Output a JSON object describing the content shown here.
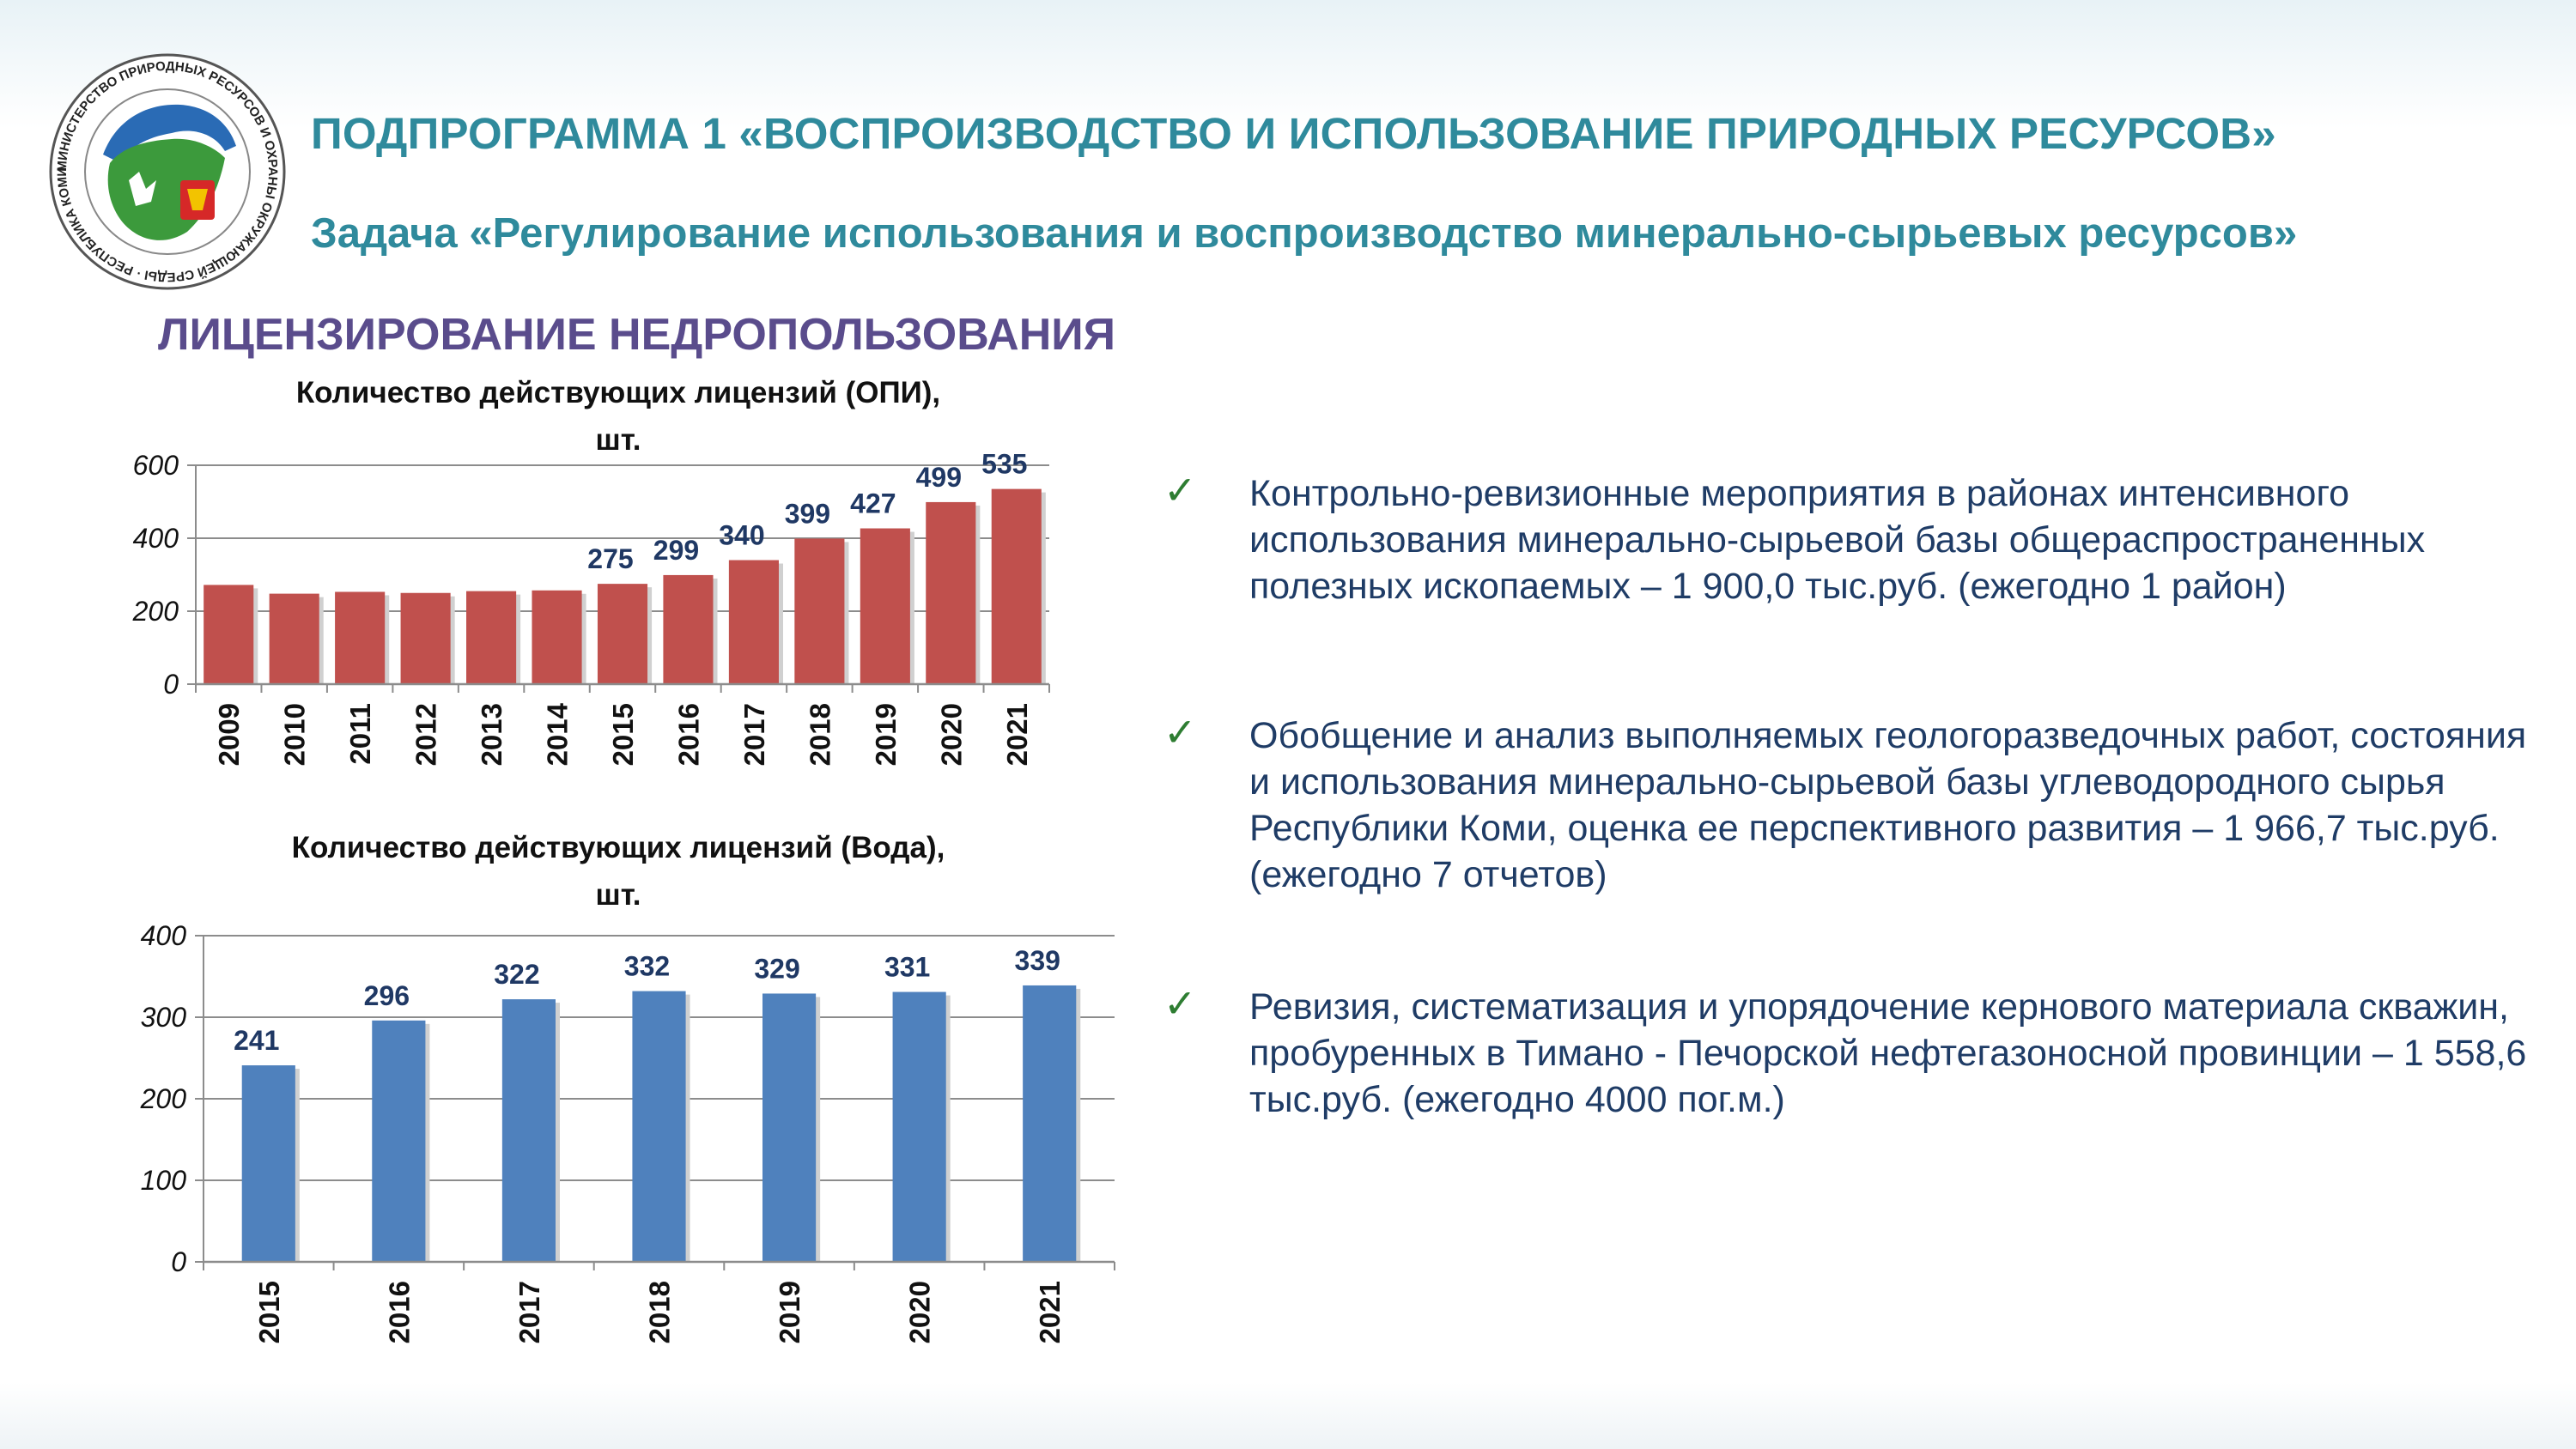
{
  "header": {
    "title": "ПОДПРОГРАММА 1 «ВОСПРОИЗВОДСТВО И ИСПОЛЬЗОВАНИЕ ПРИРОДНЫХ РЕСУРСОВ»",
    "subtitle": "Задача «Регулирование использования и воспроизводство минерально-сырьевых ресурсов»"
  },
  "logo": {
    "ring_text": "МИНИСТЕРСТВО ПРИРОДНЫХ РЕСУРСОВ И ОХРАНЫ ОКРУЖАЮЩЕЙ СРЕДЫ · РЕСПУБЛИКА КОМИ ·",
    "icon": "komi-map-emblem"
  },
  "section_title": "ЛИЦЕНЗИРОВАНИЕ НЕДРОПОЛЬЗОВАНИЯ",
  "chart_data": [
    {
      "type": "bar",
      "title_line1": "Количество действующих лицензий (ОПИ),",
      "title_line2": "шт.",
      "categories": [
        "2009",
        "2010",
        "2011",
        "2012",
        "2013",
        "2014",
        "2015",
        "2016",
        "2017",
        "2018",
        "2019",
        "2020",
        "2021"
      ],
      "values": [
        272,
        248,
        253,
        250,
        255,
        257,
        275,
        299,
        340,
        399,
        427,
        499,
        535
      ],
      "data_labels": [
        "",
        "",
        "",
        "",
        "",
        "",
        "275",
        "299",
        "340",
        "399",
        "427",
        "499",
        "535"
      ],
      "yticks": [
        "0",
        "200",
        "400",
        "600"
      ],
      "ylim": [
        0,
        600
      ],
      "grid": true,
      "color": "#c0504d"
    },
    {
      "type": "bar",
      "title_line1": "Количество действующих лицензий (Вода),",
      "title_line2": "шт.",
      "categories": [
        "2015",
        "2016",
        "2017",
        "2018",
        "2019",
        "2020",
        "2021"
      ],
      "values": [
        241,
        296,
        322,
        332,
        329,
        331,
        339
      ],
      "data_labels": [
        "241",
        "296",
        "322",
        "332",
        "329",
        "331",
        "339"
      ],
      "yticks": [
        "0",
        "100",
        "200",
        "300",
        "400"
      ],
      "ylim": [
        0,
        400
      ],
      "grid": true,
      "color": "#4f81bd"
    }
  ],
  "bullets": [
    "Контрольно-ревизионные мероприятия в районах интенсивного использования минерально-сырьевой базы общераспространенных полезных ископаемых – 1 900,0 тыс.руб. (ежегодно 1 район)",
    "Обобщение и анализ выполняемых геологоразведочных работ, состояния и использования  минерально-сырьевой базы углеводородного сырья Республики Коми, оценка ее перспективного развития – 1 966,7 тыс.руб. (ежегодно 7 отчетов)",
    "Ревизия, систематизация и упорядочение кернового материала скважин, пробуренных в Тимано - Печорской нефтегазоносной провинции – 1 558,6 тыс.руб. (ежегодно 4000 пог.м.)"
  ],
  "colors": {
    "title": "#2f8a9c",
    "section_title": "#5a4c8c",
    "bullet_text": "#1f3c66",
    "check": "#2e7d32"
  }
}
